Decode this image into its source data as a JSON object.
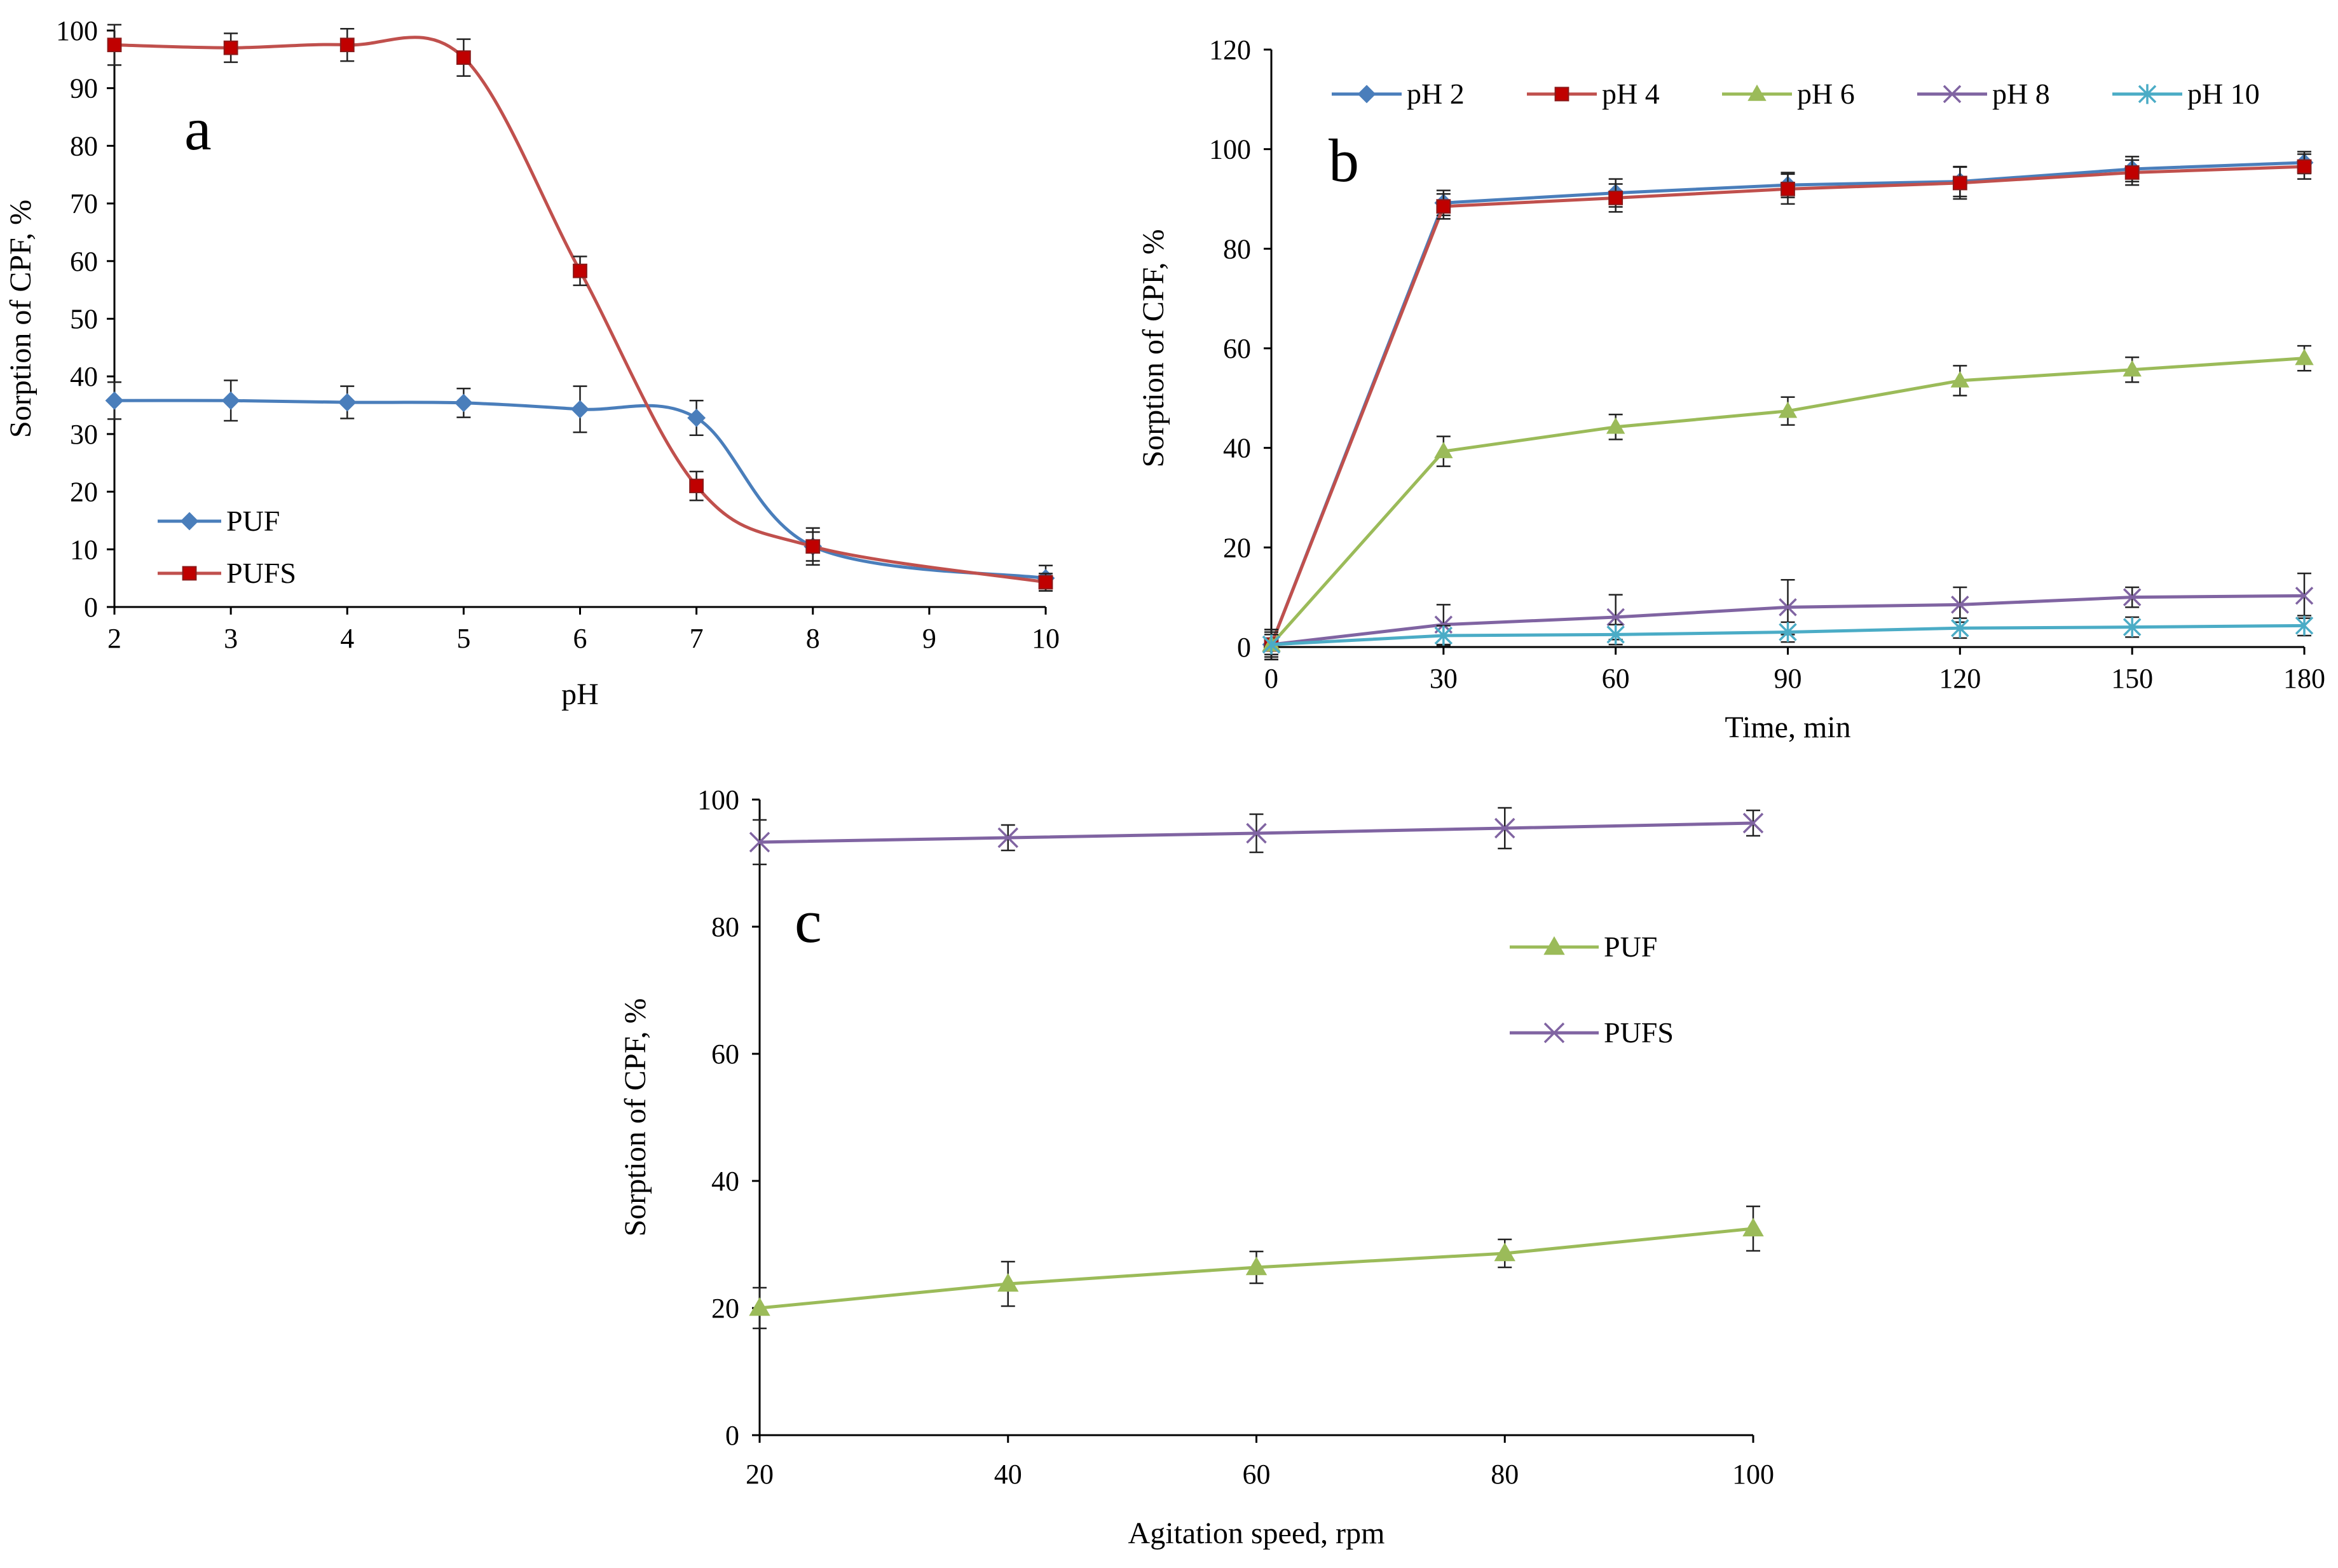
{
  "chart_data": [
    {
      "panel": "a",
      "type": "line",
      "title": "",
      "xlabel": "pH",
      "ylabel": "Sorption of CPF, %",
      "xlim": [
        2,
        10
      ],
      "ylim": [
        0,
        100
      ],
      "x_ticks": [
        2,
        3,
        4,
        5,
        6,
        7,
        8,
        9,
        10
      ],
      "y_ticks": [
        0,
        10,
        20,
        30,
        40,
        50,
        60,
        70,
        80,
        90,
        100
      ],
      "grid": false,
      "legend": "bottom-left",
      "series": [
        {
          "name": "PUF",
          "color": "#4a7ebb",
          "marker": "diamond",
          "x": [
            2,
            3,
            4,
            5,
            6,
            7,
            8,
            10
          ],
          "values": [
            35.8,
            35.8,
            35.5,
            35.4,
            34.3,
            32.8,
            10.5,
            5.0
          ],
          "errors": [
            3.2,
            3.5,
            2.8,
            2.5,
            4.0,
            3.0,
            3.2,
            2.2
          ]
        },
        {
          "name": "PUFS",
          "color": "#c0504d",
          "marker": "square",
          "x": [
            2,
            3,
            4,
            5,
            6,
            7,
            8,
            10
          ],
          "values": [
            97.5,
            97.0,
            97.5,
            95.3,
            58.3,
            21.0,
            10.5,
            4.3
          ],
          "errors": [
            3.5,
            2.5,
            2.8,
            3.2,
            2.5,
            2.5,
            2.5,
            1.5
          ]
        }
      ]
    },
    {
      "panel": "b",
      "type": "line",
      "title": "",
      "xlabel": "Time, min",
      "ylabel": "Sorption of CPF, %",
      "xlim": [
        0,
        180
      ],
      "ylim": [
        0,
        120
      ],
      "x_ticks": [
        0,
        30,
        60,
        90,
        120,
        150,
        180
      ],
      "y_ticks": [
        0,
        20,
        40,
        60,
        80,
        100,
        120
      ],
      "grid": false,
      "legend": "top",
      "series": [
        {
          "name": "pH 2",
          "color": "#4a7ebb",
          "marker": "diamond",
          "x": [
            0,
            30,
            60,
            90,
            120,
            150,
            180
          ],
          "values": [
            0.5,
            89.2,
            91.2,
            92.8,
            93.5,
            96.0,
            97.3
          ],
          "errors": [
            3.0,
            2.5,
            2.8,
            2.5,
            3.0,
            2.5,
            2.2
          ]
        },
        {
          "name": "pH 4",
          "color": "#c0504d",
          "marker": "square",
          "x": [
            0,
            30,
            60,
            90,
            120,
            150,
            180
          ],
          "values": [
            0.5,
            88.5,
            90.2,
            92.0,
            93.2,
            95.3,
            96.5
          ],
          "errors": [
            3.0,
            2.5,
            2.8,
            3.0,
            3.2,
            2.5,
            2.5
          ]
        },
        {
          "name": "pH 6",
          "color": "#9bbb59",
          "marker": "triangle",
          "x": [
            0,
            30,
            60,
            90,
            120,
            150,
            180
          ],
          "values": [
            0.5,
            39.3,
            44.2,
            47.4,
            53.5,
            55.7,
            58.0
          ],
          "errors": [
            2.5,
            3.0,
            2.5,
            2.8,
            3.0,
            2.5,
            2.5
          ]
        },
        {
          "name": "pH 8",
          "color": "#8064a2",
          "marker": "x",
          "x": [
            0,
            30,
            60,
            90,
            120,
            150,
            180
          ],
          "values": [
            0.5,
            4.5,
            6.0,
            8.0,
            8.5,
            10.0,
            10.3
          ],
          "errors": [
            3.0,
            4.0,
            4.5,
            5.5,
            3.5,
            2.0,
            4.5
          ]
        },
        {
          "name": "pH 10",
          "color": "#4bacc6",
          "marker": "asterisk",
          "x": [
            0,
            30,
            60,
            90,
            120,
            150,
            180
          ],
          "values": [
            0.5,
            2.3,
            2.5,
            3.0,
            3.8,
            4.0,
            4.3
          ],
          "errors": [
            2.0,
            2.0,
            2.0,
            2.0,
            2.0,
            2.0,
            2.0
          ]
        }
      ]
    },
    {
      "panel": "c",
      "type": "line",
      "title": "",
      "xlabel": "Agitation speed, rpm",
      "ylabel": "Sorption of CPF, %",
      "xlim": [
        20,
        100
      ],
      "ylim": [
        0,
        100
      ],
      "x_ticks": [
        20,
        40,
        60,
        80,
        100
      ],
      "y_ticks": [
        0,
        20,
        40,
        60,
        80,
        100
      ],
      "grid": false,
      "legend": "top-right",
      "series": [
        {
          "name": "PUF",
          "color": "#9bbb59",
          "marker": "triangle",
          "x": [
            20,
            40,
            60,
            80,
            100
          ],
          "values": [
            20.0,
            23.8,
            26.4,
            28.6,
            32.5
          ],
          "errors": [
            3.2,
            3.5,
            2.5,
            2.2,
            3.5
          ]
        },
        {
          "name": "PUFS",
          "color": "#8064a2",
          "marker": "x",
          "x": [
            20,
            40,
            60,
            80,
            100
          ],
          "values": [
            93.3,
            94.0,
            94.7,
            95.5,
            96.3
          ],
          "errors": [
            3.5,
            2.0,
            3.0,
            3.2,
            2.0
          ]
        }
      ]
    }
  ]
}
